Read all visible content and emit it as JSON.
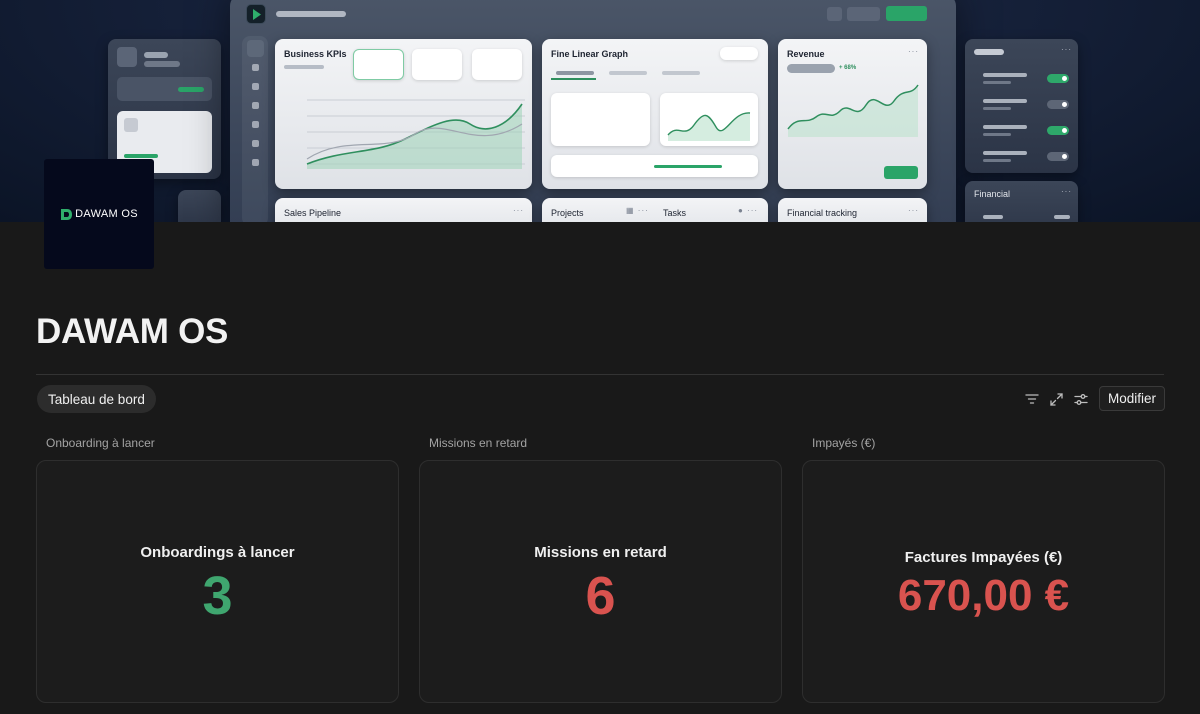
{
  "cover": {
    "cards": {
      "business_kpis": "Business KPIs",
      "fine_linear_graph": "Fine Linear Graph",
      "revenue": "Revenue",
      "revenue_change": "+ 68%",
      "sales_pipeline": "Sales Pipeline",
      "projects": "Projects",
      "tasks": "Tasks",
      "financial_tracking": "Financial tracking",
      "financial": "Financial"
    }
  },
  "page_icon": {
    "logo_text": "DAWAM OS",
    "logo_color": "#2fae6b",
    "background": "#05091c"
  },
  "page": {
    "title": "DAWAM OS"
  },
  "view_bar": {
    "tab_label": "Tableau de bord",
    "icons": [
      "filter-icon",
      "expand-icon",
      "settings-sliders-icon"
    ],
    "edit_button": "Modifier"
  },
  "cards": [
    {
      "label": "Onboarding à lancer",
      "title": "Onboardings à lancer",
      "value": "3",
      "value_color": "#3fa66f"
    },
    {
      "label": "Missions en retard",
      "title": "Missions en retard",
      "value": "6",
      "value_color": "#d9534f"
    },
    {
      "label": "Impayés (€)",
      "title": "Factures Impayées (€)",
      "value": "670,00 €",
      "value_color": "#d9534f"
    }
  ]
}
